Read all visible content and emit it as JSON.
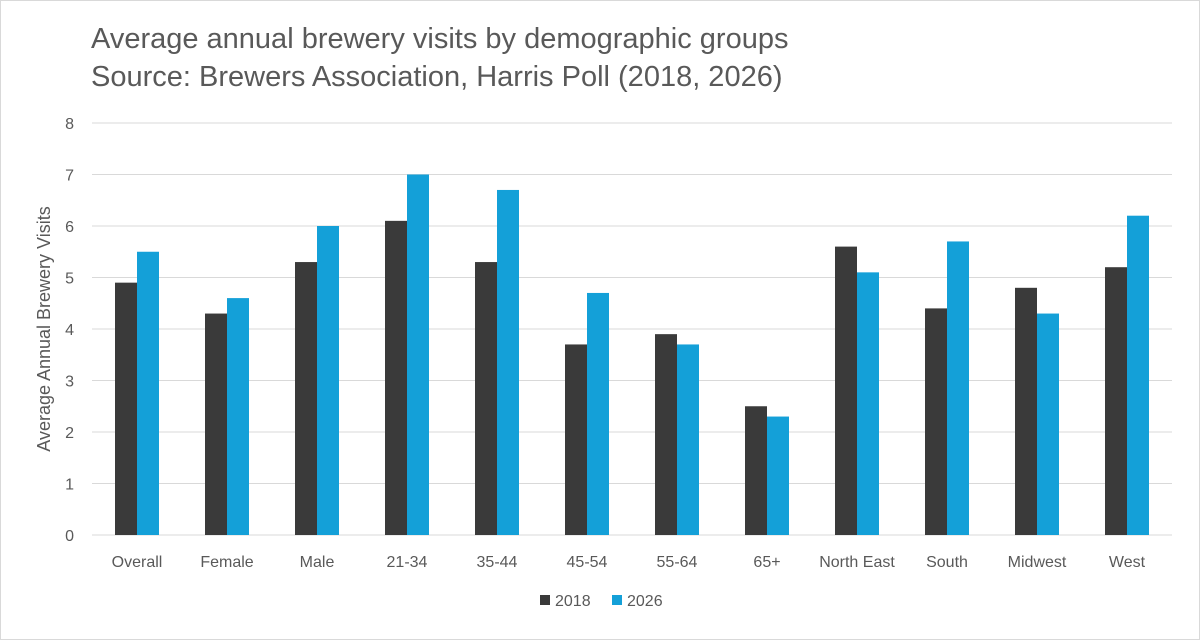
{
  "chart_data": {
    "type": "bar",
    "title": "Average annual brewery visits by demographic groups",
    "subtitle": "Source: Brewers Association, Harris Poll (2018, 2026)",
    "xlabel": "",
    "ylabel": "Average Annual Brewery Visits",
    "ylim": [
      0,
      8
    ],
    "yticks": [
      0,
      1,
      2,
      3,
      4,
      5,
      6,
      7,
      8
    ],
    "grid": true,
    "legend_position": "bottom",
    "categories": [
      "Overall",
      "Female",
      "Male",
      "21-34",
      "35-44",
      "45-54",
      "55-64",
      "65+",
      "North East",
      "South",
      "Midwest",
      "West"
    ],
    "series": [
      {
        "name": "2018",
        "color": "#3a3a3a",
        "values": [
          4.9,
          4.3,
          5.3,
          6.1,
          5.3,
          3.7,
          3.9,
          2.5,
          5.6,
          4.4,
          4.8,
          5.2
        ]
      },
      {
        "name": "2026",
        "color": "#14a0d8",
        "values": [
          5.5,
          4.6,
          6.0,
          7.0,
          6.7,
          4.7,
          3.7,
          2.3,
          5.1,
          5.7,
          4.3,
          6.2
        ]
      }
    ]
  }
}
